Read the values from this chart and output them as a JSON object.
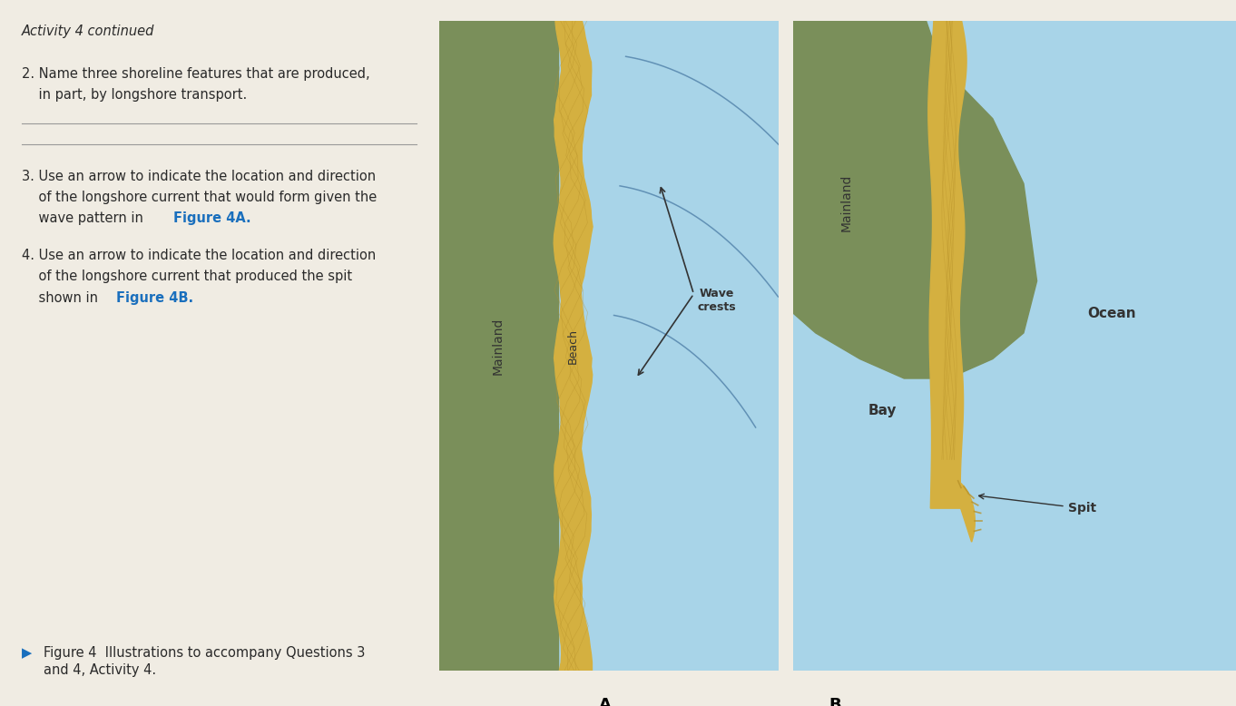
{
  "bg_color": "#f0ece3",
  "ocean_color": "#a8d4e8",
  "mainland_color": "#7a8f5a",
  "beach_color": "#d4b040",
  "wave_color": "#5a8ab0",
  "blue_color": "#1a6fbd",
  "dark_text": "#2a2a2a",
  "gray_line": "#999999",
  "title_italic": "Activity 4 continued",
  "q2_line1": "2. Name three shoreline features that are produced,",
  "q2_line2": "    in part, by longshore transport.",
  "q3_pre": "3. Use an arrow to indicate the location and direction",
  "q3_line2": "    of the longshore current that would form given the",
  "q3_line3": "    wave pattern in ",
  "q3_blue": "Figure 4A.",
  "q4_pre": "4. Use an arrow to indicate the location and direction",
  "q4_line2": "    of the longshore current that produced the spit",
  "q4_line3": "    shown in ",
  "q4_blue": "Figure 4B.",
  "caption_black": "Figure 4  Illustrations to accompany Questions 3",
  "caption_line2": "and 4, Activity 4.",
  "label_A": "A.",
  "label_B": "B.",
  "label_mainland_A": "Mainland",
  "label_beach_A": "Beach",
  "label_wave_crests": "Wave\ncrests",
  "label_mainland_B": "Mainland",
  "label_ocean": "Ocean",
  "label_bay": "Bay",
  "label_spit": "Spit"
}
